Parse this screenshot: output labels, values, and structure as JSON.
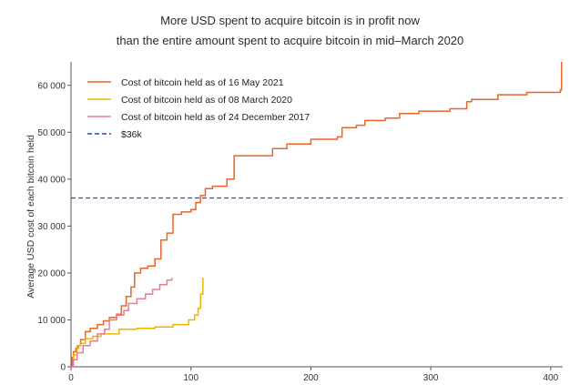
{
  "chart_data": {
    "type": "line",
    "title": {
      "line1": "More USD spent to acquire bitcoin is in profit now",
      "line2": "than the entire amount spent to acquire bitcoin in mid–March 2020"
    },
    "xlabel": "",
    "ylabel": "Average USD cost of each bitcoin held",
    "xlim": [
      0,
      410
    ],
    "ylim": [
      0,
      65000
    ],
    "x_ticks": [
      0,
      100,
      200,
      300,
      400
    ],
    "x_tick_labels": [
      "0",
      "100",
      "200",
      "300",
      "400"
    ],
    "y_ticks": [
      0,
      10000,
      20000,
      30000,
      40000,
      50000,
      60000
    ],
    "y_tick_labels": [
      "0",
      "10 000",
      "20 000",
      "30 000",
      "40 000",
      "50 000",
      "60 000"
    ],
    "grid": false,
    "legend_position": "top-left",
    "series": [
      {
        "name": "Cost of bitcoin held as of 16 May 2021",
        "color": "#e8662a",
        "style": "solid",
        "points": [
          [
            0,
            0
          ],
          [
            1,
            2000
          ],
          [
            2,
            3200
          ],
          [
            4,
            4000
          ],
          [
            6,
            4500
          ],
          [
            8,
            5800
          ],
          [
            12,
            7500
          ],
          [
            16,
            8200
          ],
          [
            22,
            9000
          ],
          [
            27,
            9800
          ],
          [
            32,
            10500
          ],
          [
            38,
            11200
          ],
          [
            42,
            13000
          ],
          [
            46,
            15000
          ],
          [
            50,
            17000
          ],
          [
            53,
            20000
          ],
          [
            58,
            21000
          ],
          [
            64,
            21500
          ],
          [
            70,
            23000
          ],
          [
            75,
            27000
          ],
          [
            80,
            28500
          ],
          [
            85,
            32500
          ],
          [
            92,
            33000
          ],
          [
            100,
            33500
          ],
          [
            104,
            35000
          ],
          [
            108,
            36500
          ],
          [
            112,
            38000
          ],
          [
            118,
            38500
          ],
          [
            130,
            40000
          ],
          [
            136,
            45000
          ],
          [
            145,
            45000
          ],
          [
            162,
            45000
          ],
          [
            168,
            46500
          ],
          [
            180,
            47500
          ],
          [
            200,
            48500
          ],
          [
            222,
            49000
          ],
          [
            226,
            51000
          ],
          [
            238,
            51500
          ],
          [
            245,
            52500
          ],
          [
            262,
            53000
          ],
          [
            274,
            54000
          ],
          [
            290,
            54500
          ],
          [
            316,
            55000
          ],
          [
            330,
            56500
          ],
          [
            334,
            57000
          ],
          [
            356,
            58000
          ],
          [
            380,
            58500
          ],
          [
            408,
            59000
          ],
          [
            409,
            65000
          ]
        ]
      },
      {
        "name": "Cost of bitcoin held as of 08 March 2020",
        "color": "#f0b400",
        "style": "solid",
        "points": [
          [
            0,
            0
          ],
          [
            2,
            2500
          ],
          [
            5,
            4500
          ],
          [
            8,
            5000
          ],
          [
            12,
            6000
          ],
          [
            18,
            6500
          ],
          [
            25,
            7000
          ],
          [
            40,
            8000
          ],
          [
            55,
            8200
          ],
          [
            70,
            8500
          ],
          [
            85,
            9000
          ],
          [
            98,
            10000
          ],
          [
            103,
            11000
          ],
          [
            106,
            12500
          ],
          [
            108,
            15500
          ],
          [
            110,
            19000
          ]
        ]
      },
      {
        "name": "Cost of bitcoin held as of 24 December 2017",
        "color": "#ec7b8e",
        "style": "solid",
        "points": [
          [
            0,
            0
          ],
          [
            2,
            1500
          ],
          [
            5,
            3000
          ],
          [
            10,
            4500
          ],
          [
            16,
            5500
          ],
          [
            22,
            7000
          ],
          [
            28,
            8000
          ],
          [
            32,
            10000
          ],
          [
            38,
            11000
          ],
          [
            44,
            12000
          ],
          [
            48,
            13500
          ],
          [
            55,
            14500
          ],
          [
            62,
            15500
          ],
          [
            68,
            16500
          ],
          [
            74,
            17500
          ],
          [
            80,
            18500
          ],
          [
            84,
            19000
          ]
        ]
      },
      {
        "name": "$36k",
        "color": "#2f4aa8",
        "style": "dashed",
        "points": [
          [
            0,
            36000
          ],
          [
            410,
            36000
          ]
        ]
      }
    ]
  }
}
